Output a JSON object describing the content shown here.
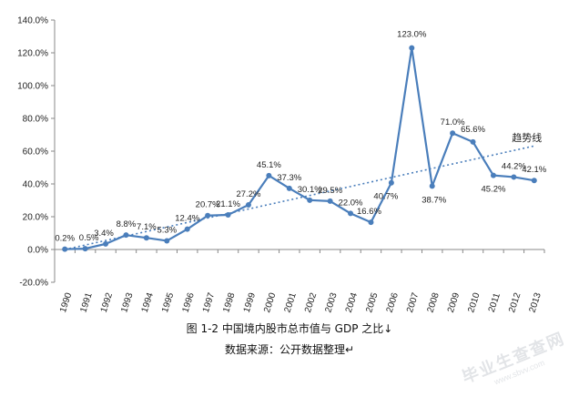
{
  "chart_data": {
    "type": "line",
    "categories": [
      "1990",
      "1991",
      "1992",
      "1993",
      "1994",
      "1995",
      "1996",
      "1997",
      "1998",
      "1999",
      "2000",
      "2001",
      "2002",
      "2003",
      "2004",
      "2005",
      "2006",
      "2007",
      "2008",
      "2009",
      "2010",
      "2011",
      "2012",
      "2013"
    ],
    "series": [
      {
        "values": [
          0.2,
          0.5,
          3.4,
          8.8,
          7.1,
          5.3,
          12.4,
          20.7,
          21.1,
          27.2,
          45.1,
          37.3,
          30.1,
          29.5,
          22.0,
          16.6,
          40.7,
          123.0,
          38.7,
          71.0,
          65.6,
          45.2,
          44.2,
          42.1
        ],
        "labels": [
          "0.2%",
          "0.5%",
          "3.4%",
          "8.8%",
          "7.1%",
          "5.3%",
          "12.4%",
          "20.7%",
          "21.1%",
          "27.2%",
          "45.1%",
          "37.3%",
          "30.1%",
          "29.5%",
          "22.0%",
          "16.6%",
          "40.7%",
          "123.0%",
          "38.7%",
          "71.0%",
          "65.6%",
          "45.2%",
          "44.2%",
          "42.1%"
        ],
        "color": "#4a7ebb"
      }
    ],
    "trendline": {
      "label": "趋势线",
      "color": "#4a7ebb",
      "style": "dotted"
    },
    "yticks": [
      "-20.0%",
      "0.0%",
      "20.0%",
      "40.0%",
      "60.0%",
      "80.0%",
      "100.0%",
      "120.0%",
      "140.0%"
    ],
    "ylim": [
      -20,
      140
    ],
    "grid": false,
    "legend": "none"
  },
  "caption": {
    "line1": "图 1-2 中国境内股市总市值与 GDP 之比↓",
    "line2": "数据来源：公开数据整理↵"
  },
  "watermark": {
    "main": "毕业生查查网",
    "sub": "www.sbvv.com"
  }
}
